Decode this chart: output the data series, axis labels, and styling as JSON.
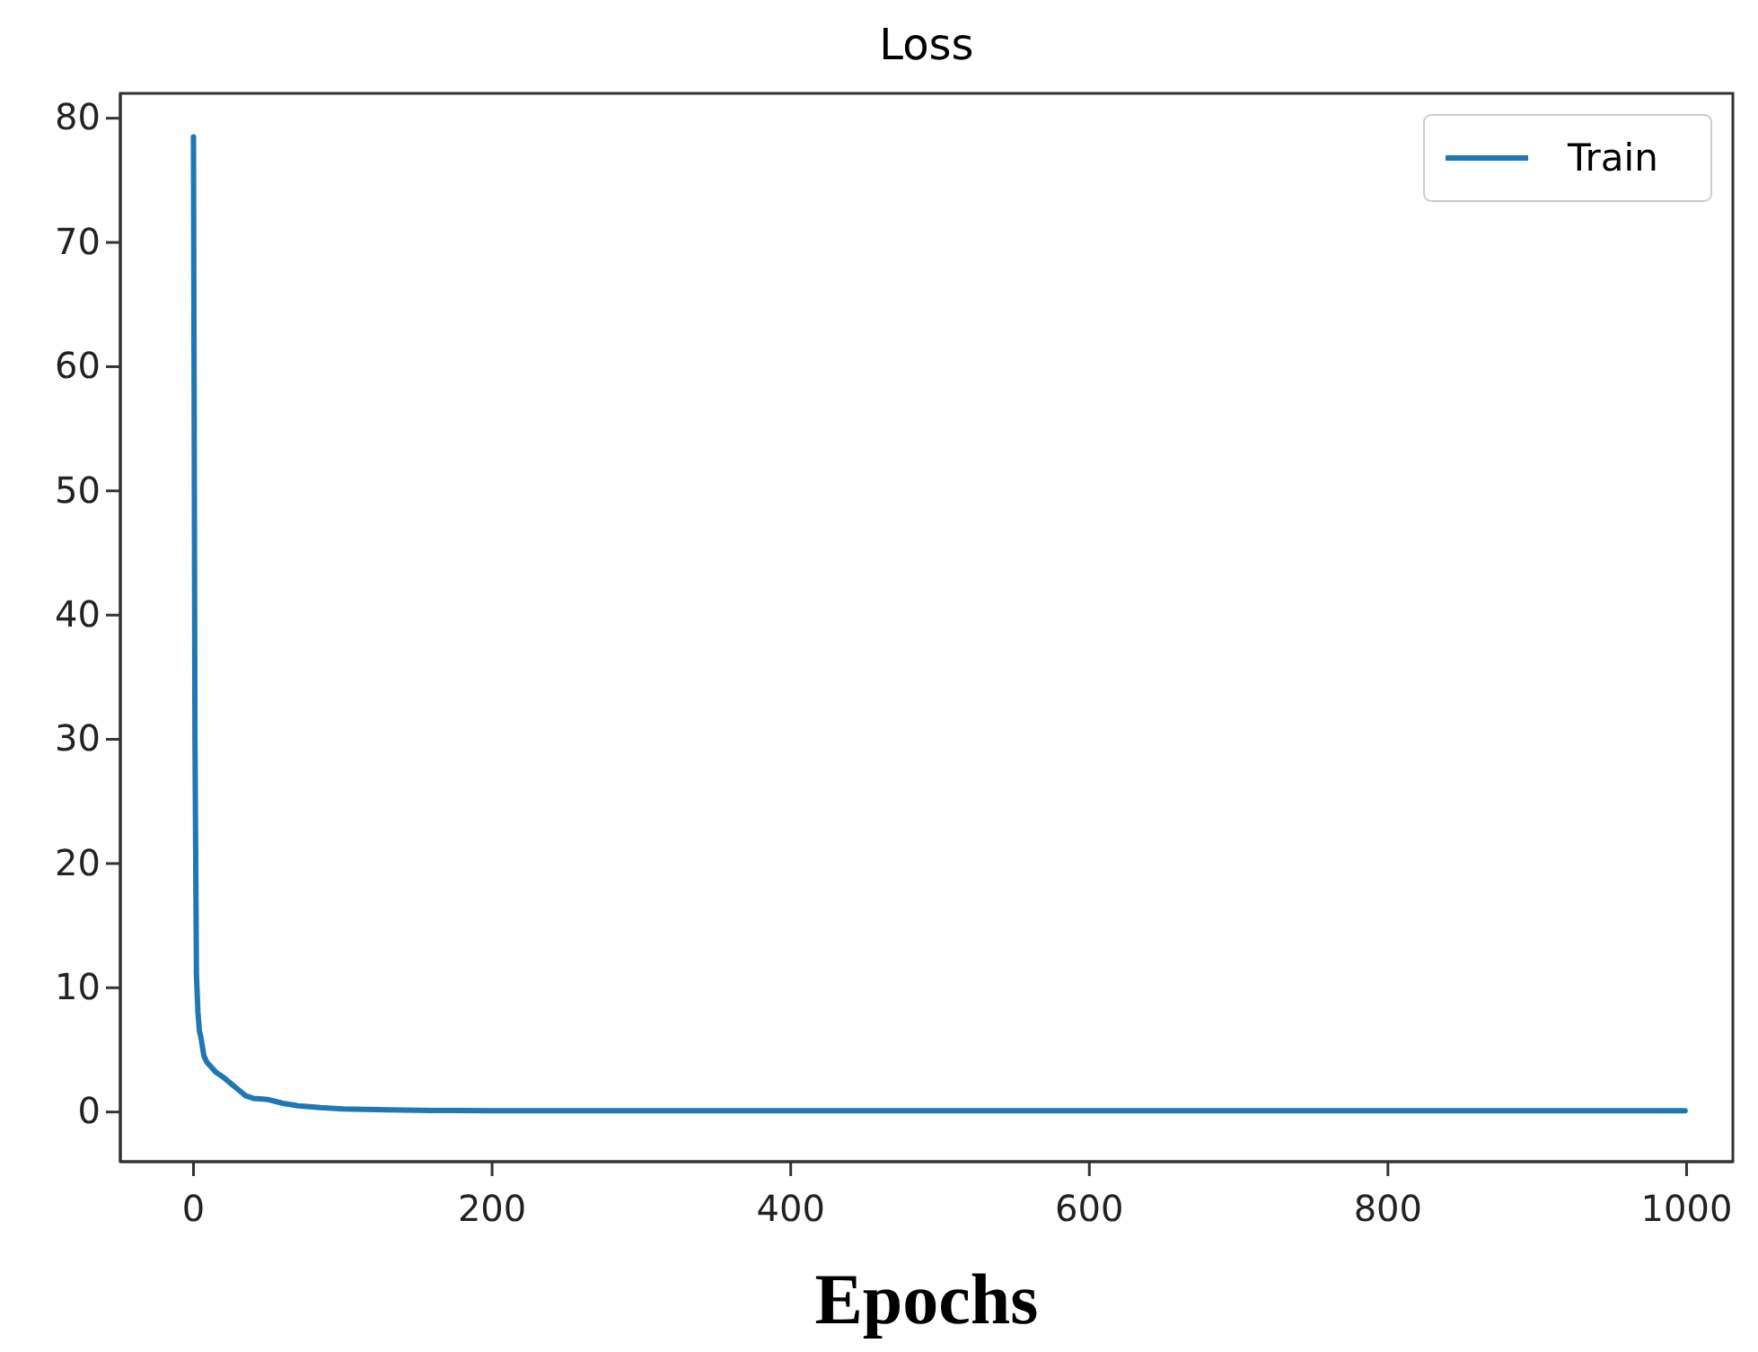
{
  "chart_data": {
    "type": "line",
    "title": "Loss",
    "xlabel": "Epochs",
    "x": [
      0,
      1,
      2,
      3,
      4,
      5,
      7,
      9,
      12,
      15,
      20,
      25,
      30,
      35,
      40,
      50,
      60,
      70,
      85,
      100,
      130,
      160,
      200,
      300,
      400,
      500,
      600,
      700,
      800,
      900,
      999
    ],
    "series": [
      {
        "name": "Train",
        "color": "#1f77b4",
        "values": [
          78.5,
          30,
          11,
          8,
          6.5,
          6,
          4.5,
          4,
          3.6,
          3.2,
          2.8,
          2.3,
          1.8,
          1.3,
          1.1,
          1.0,
          0.7,
          0.5,
          0.35,
          0.25,
          0.18,
          0.12,
          0.1,
          0.1,
          0.1,
          0.1,
          0.1,
          0.1,
          0.1,
          0.1,
          0.1
        ]
      }
    ],
    "xlim": [
      -49,
      1031
    ],
    "ylim": [
      -4,
      82
    ],
    "xticks": [
      0,
      200,
      400,
      600,
      800,
      1000
    ],
    "yticks": [
      0,
      10,
      20,
      30,
      40,
      50,
      60,
      70,
      80
    ],
    "grid": false,
    "legend": "top right",
    "marker": "none",
    "line_style": "solid"
  }
}
